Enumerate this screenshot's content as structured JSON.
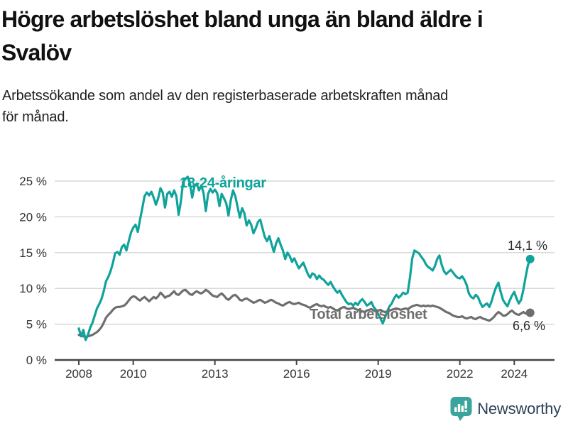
{
  "header": {
    "title_lines": [
      "Högre arbetslöshet bland unga än bland äldre i",
      "Svalöv"
    ],
    "subtitle_lines": [
      "Arbetssökande som andel av den registerbaserade arbetskraften månad",
      "för månad."
    ]
  },
  "colors": {
    "young": "#10a39b",
    "total": "#6e6e6e",
    "grid": "#d9d9d9",
    "axis": "#444444",
    "tick_text": "#333333",
    "logo_teal": "#3aa49d",
    "logo_text": "#2c4257"
  },
  "annotations": {
    "young_series_label": "18-24-åringar",
    "total_series_label": "Total arbetslöshet",
    "young_end_label": "14,1 %",
    "total_end_label": "6,6 %"
  },
  "footer": {
    "brand": "Newsworthy"
  },
  "chart_data": {
    "type": "line",
    "x_start_year": 2008.0,
    "x_step_years": 0.0833333,
    "xlim": [
      2007.1,
      2025.5
    ],
    "ylim": [
      0,
      27.5
    ],
    "grid": "horizontal",
    "x_ticks": [
      {
        "year": 2008,
        "label": "2008"
      },
      {
        "year": 2010,
        "label": "2010"
      },
      {
        "year": 2013,
        "label": "2013"
      },
      {
        "year": 2016,
        "label": "2016"
      },
      {
        "year": 2019,
        "label": "2019"
      },
      {
        "year": 2022,
        "label": "2022"
      },
      {
        "year": 2024,
        "label": "2024"
      }
    ],
    "y_ticks": [
      {
        "value": 0,
        "label": "0 %"
      },
      {
        "value": 5,
        "label": "5 %"
      },
      {
        "value": 10,
        "label": "10 %"
      },
      {
        "value": 15,
        "label": "15 %"
      },
      {
        "value": 20,
        "label": "20 %"
      },
      {
        "value": 25,
        "label": "25 %"
      }
    ],
    "series": [
      {
        "name": "Total arbetslöshet",
        "color_key": "total",
        "end_value": 6.6,
        "end_label": "6,6 %",
        "values": [
          3.5,
          3.4,
          3.3,
          3.2,
          3.3,
          3.4,
          3.5,
          3.7,
          3.9,
          4.2,
          4.6,
          5.2,
          5.9,
          6.3,
          6.6,
          7.0,
          7.3,
          7.4,
          7.4,
          7.5,
          7.6,
          7.9,
          8.3,
          8.7,
          8.9,
          8.8,
          8.5,
          8.3,
          8.6,
          8.8,
          8.5,
          8.2,
          8.5,
          8.8,
          8.6,
          8.9,
          9.4,
          9.1,
          8.7,
          8.9,
          9.0,
          9.3,
          9.6,
          9.2,
          9.1,
          9.4,
          9.7,
          9.8,
          9.5,
          9.2,
          9.1,
          9.4,
          9.6,
          9.4,
          9.3,
          9.5,
          9.8,
          9.6,
          9.3,
          9.0,
          8.9,
          8.8,
          9.1,
          9.3,
          9.0,
          8.6,
          8.4,
          8.7,
          9.0,
          9.1,
          8.8,
          8.4,
          8.3,
          8.5,
          8.6,
          8.4,
          8.2,
          8.0,
          8.1,
          8.3,
          8.4,
          8.2,
          8.0,
          8.1,
          8.3,
          8.4,
          8.2,
          8.0,
          7.9,
          7.7,
          7.6,
          7.8,
          8.0,
          8.1,
          7.9,
          7.8,
          7.9,
          8.0,
          7.8,
          7.7,
          7.6,
          7.4,
          7.3,
          7.5,
          7.7,
          7.8,
          7.6,
          7.5,
          7.6,
          7.4,
          7.3,
          7.4,
          7.2,
          7.0,
          6.9,
          7.1,
          7.3,
          7.4,
          7.2,
          7.1,
          7.2,
          7.3,
          7.1,
          7.0,
          6.9,
          6.8,
          6.7,
          6.9,
          7.0,
          7.1,
          6.9,
          6.8,
          6.9,
          7.0,
          6.8,
          6.7,
          6.8,
          6.9,
          7.0,
          7.1,
          7.2,
          7.1,
          7.0,
          7.1,
          7.2,
          7.1,
          7.3,
          7.5,
          7.6,
          7.7,
          7.6,
          7.5,
          7.6,
          7.5,
          7.6,
          7.5,
          7.6,
          7.5,
          7.4,
          7.3,
          7.1,
          6.9,
          6.7,
          6.6,
          6.4,
          6.2,
          6.1,
          6.0,
          6.0,
          6.1,
          5.9,
          5.8,
          5.9,
          6.0,
          5.8,
          5.7,
          5.9,
          6.0,
          5.8,
          5.7,
          5.6,
          5.5,
          5.7,
          6.0,
          6.4,
          6.7,
          6.5,
          6.2,
          6.2,
          6.4,
          6.7,
          6.9,
          6.6,
          6.4,
          6.3,
          6.5,
          6.7,
          6.5,
          6.4,
          6.6
        ]
      },
      {
        "name": "18-24-åringar",
        "color_key": "young",
        "end_value": 14.1,
        "end_label": "14,1 %",
        "values": [
          4.4,
          3.3,
          4.2,
          2.8,
          3.5,
          4.5,
          5.2,
          6.2,
          7.2,
          7.8,
          8.5,
          9.6,
          11.0,
          11.6,
          12.4,
          13.5,
          14.9,
          15.1,
          14.7,
          15.8,
          16.1,
          15.3,
          16.6,
          17.8,
          18.5,
          18.9,
          17.9,
          19.6,
          21.2,
          22.9,
          23.4,
          23.0,
          23.5,
          22.7,
          21.7,
          22.6,
          24.0,
          23.4,
          21.3,
          23.2,
          23.5,
          22.8,
          23.7,
          22.9,
          20.3,
          22.1,
          24.9,
          25.3,
          25.6,
          24.7,
          22.7,
          24.3,
          24.6,
          23.7,
          24.4,
          23.3,
          20.8,
          23.2,
          23.9,
          23.4,
          23.8,
          23.3,
          21.5,
          23.2,
          22.6,
          21.9,
          20.2,
          22.3,
          23.7,
          22.9,
          21.4,
          19.9,
          21.2,
          20.5,
          18.8,
          19.5,
          18.9,
          17.7,
          18.4,
          19.3,
          19.6,
          18.4,
          17.2,
          16.6,
          17.3,
          16.2,
          15.1,
          16.3,
          17.0,
          16.1,
          15.3,
          14.1,
          15.0,
          14.5,
          13.7,
          14.2,
          13.5,
          12.8,
          13.2,
          13.6,
          12.8,
          12.0,
          11.5,
          12.1,
          11.9,
          11.3,
          11.8,
          11.4,
          11.2,
          10.8,
          10.5,
          10.9,
          10.3,
          9.8,
          9.4,
          9.7,
          9.1,
          8.6,
          8.1,
          7.8,
          7.9,
          7.6,
          8.0,
          7.7,
          8.2,
          8.5,
          8.1,
          7.6,
          7.8,
          8.1,
          7.4,
          7.0,
          6.4,
          5.8,
          5.1,
          5.9,
          6.8,
          7.5,
          7.9,
          8.6,
          9.1,
          8.7,
          9.0,
          9.4,
          9.2,
          9.4,
          11.5,
          14.2,
          15.3,
          15.1,
          14.9,
          14.4,
          14.0,
          13.4,
          13.0,
          12.8,
          12.5,
          13.1,
          14.1,
          14.6,
          13.3,
          12.4,
          12.0,
          12.3,
          12.6,
          12.2,
          11.8,
          11.5,
          11.4,
          11.7,
          11.2,
          10.5,
          9.3,
          8.8,
          8.6,
          9.1,
          8.8,
          8.0,
          7.4,
          7.7,
          7.9,
          7.4,
          8.2,
          9.3,
          10.2,
          10.8,
          9.5,
          8.4,
          7.9,
          7.5,
          8.3,
          9.0,
          9.5,
          8.6,
          7.9,
          8.4,
          9.8,
          11.6,
          13.2,
          14.1
        ]
      }
    ]
  }
}
